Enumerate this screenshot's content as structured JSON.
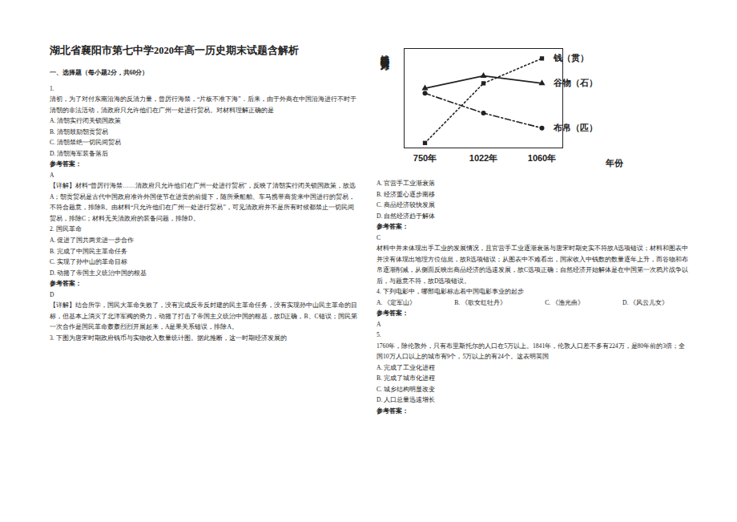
{
  "header": {
    "title": "湖北省襄阳市第七中学2020年高一历史期末试题含解析",
    "section": "一、选择题（每小题2分，共60分）"
  },
  "left_column": [
    {
      "kind": "q",
      "text": "1."
    },
    {
      "kind": "q",
      "text": "清初，为了对付东南沿海的反清力量，曾厉行海禁，“片板不准下海”．后来，由于外商在中国沿海进行不时于清朝的非法活动，清政府只允许他们在广州一处进行贸易。对材料理解正确的是"
    },
    {
      "kind": "opt",
      "text": "A. 清朝实行闭关锁国政策"
    },
    {
      "kind": "opt",
      "text": "B. 清朝鼓励朝贡贸易"
    },
    {
      "kind": "opt",
      "text": "C. 清朝禁绝一切民间贸易"
    },
    {
      "kind": "opt",
      "text": "D. 清朝海军装备落后"
    },
    {
      "kind": "ans_head",
      "text": "参考答案："
    },
    {
      "kind": "ans",
      "text": "A"
    },
    {
      "kind": "exp",
      "text": "【详解】材料“曾厉行海禁……清政府只允许他们在广州一处进行贸易”，反映了清朝实行闭关锁国政策，故选A；朝贡贸易是古代中国政府准许外国使节在进贡的前提下，随所乘船舶、车马携带商货来中国进行的贸易，不符合题意，排除B。由材料“只允许他们在广州一处进行贸易”，可见清政府并不是所有时候都禁止一切民间贸易，排除C；材料无关清政府的装备问题，排除D。"
    },
    {
      "kind": "q",
      "text": "2. 国民革命"
    },
    {
      "kind": "opt",
      "text": "A. 促进了国共两党进一步合作"
    },
    {
      "kind": "opt",
      "text": "B. 完成了中国民主革命任务"
    },
    {
      "kind": "opt",
      "text": "C. 实现了孙中山的革命目标"
    },
    {
      "kind": "opt",
      "text": "D. 动摇了帝国主义统治中国的根基"
    },
    {
      "kind": "ans_head",
      "text": "参考答案："
    },
    {
      "kind": "ans",
      "text": "D"
    },
    {
      "kind": "exp",
      "text": "【详解】结合所学，国民大革命失败了，没有完成反帝反封建的民主革命任务，没有实现孙中山民主革命的目标，但基本上消灭了北洋军阀的势力，动摇了打击了帝国主义统治中国的根基，故D正确，B、C错误；国民第一次合作是国民革命轰轰烈烈开展起来，A是果关系错误，排除A。"
    },
    {
      "kind": "q",
      "text": "3. 下图为唐宋时期政府钱币与实物收入数量统计图。据此推断，这一时期经济发展的"
    }
  ],
  "chart_data": {
    "type": "line",
    "y_label": "钱币与实物收入（百万）",
    "x_label": "年份",
    "categories": [
      "750年",
      "1022年",
      "1060年"
    ],
    "series": [
      {
        "name": "钱（贯）",
        "color": "#222222",
        "line_style": "dotted",
        "marker": "square",
        "values": [
          2,
          26,
          36
        ]
      },
      {
        "name": "谷物（石）",
        "color": "#222222",
        "line_style": "solid",
        "marker": "triangle",
        "values": [
          24,
          29,
          26
        ]
      },
      {
        "name": "布帛（匹）",
        "color": "#222222",
        "line_style": "dashdot",
        "marker": "circle",
        "values": [
          22,
          14,
          8
        ]
      }
    ],
    "ylim": [
      0,
      40
    ],
    "yticks": [],
    "tick_labels": "x",
    "grid": false
  },
  "right_column": [
    {
      "kind": "opt",
      "text": "A. 官营手工业渐衰落"
    },
    {
      "kind": "opt",
      "text": "B. 经济重心逐步南移"
    },
    {
      "kind": "opt",
      "text": "C. 商品经济较快发展"
    },
    {
      "kind": "opt",
      "text": "D. 自然经济趋于解体"
    },
    {
      "kind": "ans_head",
      "text": "参考答案："
    },
    {
      "kind": "ans",
      "text": "C"
    },
    {
      "kind": "exp",
      "text": "材料中并未体现出手工业的发展情况，且官营手工业逐渐衰落与唐宋时期史实不符故A选项错误；材料和图表中并没有体现出地理方位信息，故B选项错误；从图表中不难看出，国家收入中钱数的数量逐年上升，而谷物和布帛逐渐削减，从侧面反映出商品经济的迅速发展，故C选项正确；自然经济开始解体是在中国第一次鸦片战争以后，与题意不符，故D选项错误。"
    },
    {
      "kind": "q",
      "text": "4. 下列电影中，哪部电影标志着中国电影事业的起步"
    },
    {
      "kind": "opts_inline",
      "items": [
        "A. 《定军山》",
        "B. 《歌女红牡丹》",
        "C. 《渔光曲》",
        "D. 《风云儿女》"
      ]
    },
    {
      "kind": "ans_head",
      "text": "参考答案："
    },
    {
      "kind": "ans",
      "text": "A"
    },
    {
      "kind": "q",
      "text": "5."
    },
    {
      "kind": "q",
      "text": "1760年，除伦敦外，只有布里斯托尔的人口在5万以上。1841年，伦敦人口差不多有224万，是80年前的3倍；全国10万人口以上的城市有9个，5万以上的有24个。这表明英国"
    },
    {
      "kind": "opt",
      "text": "A. 完成了工业化进程"
    },
    {
      "kind": "opt",
      "text": "B. 完成了城市化进程"
    },
    {
      "kind": "opt",
      "text": "C. 城乡结构明显改变"
    },
    {
      "kind": "opt",
      "text": "D. 人口总量迅速增长"
    },
    {
      "kind": "ans_head",
      "text": "参考答案："
    }
  ]
}
